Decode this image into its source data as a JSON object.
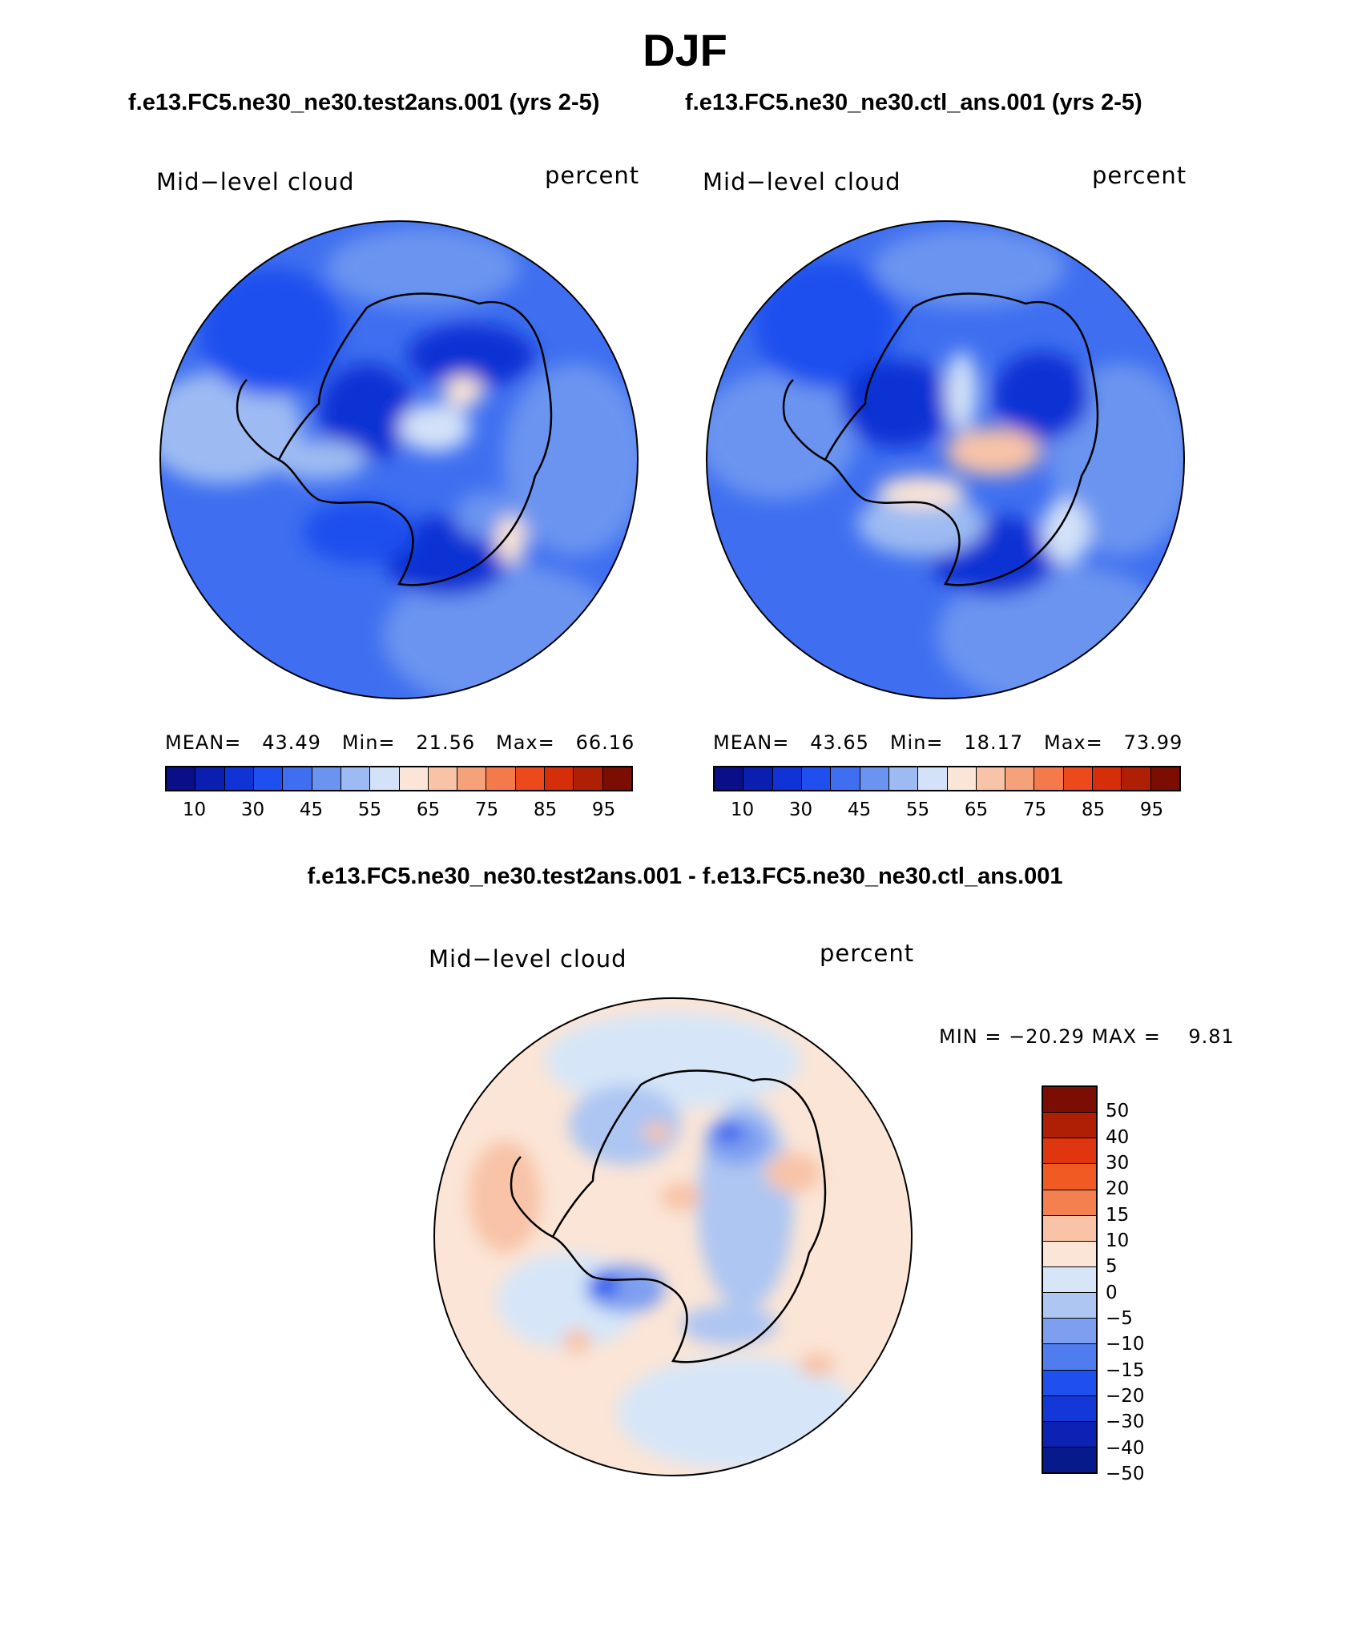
{
  "figure": {
    "title": "DJF",
    "subtitle_left": "f.e13.FC5.ne30_ne30.test2ans.001 (yrs 2-5)",
    "subtitle_right": "f.e13.FC5.ne30_ne30.ctl_ans.001 (yrs 2-5)",
    "diff_title": "f.e13.FC5.ne30_ne30.test2ans.001 - f.e13.FC5.ne30_ne30.ctl_ans.001"
  },
  "panels": [
    {
      "variable": "Mid−level cloud",
      "units": "percent",
      "stats": "MEAN=   43.49   Min=   21.56   Max=   66.16"
    },
    {
      "variable": "Mid−level cloud",
      "units": "percent",
      "stats": "MEAN=   43.65   Min=   18.17   Max=   73.99"
    }
  ],
  "diff_panel": {
    "variable": "Mid−level cloud",
    "units": "percent",
    "stats": "MIN = −20.29 MAX =    9.81"
  },
  "colorbar_abs": {
    "colors": [
      "#0a0f87",
      "#0a1fb0",
      "#0f33d4",
      "#1f4fee",
      "#3f6ff0",
      "#6b94f0",
      "#9dbbf2",
      "#d3e2f8",
      "#fbe5d6",
      "#f8c3a7",
      "#f5a17a",
      "#f47a4b",
      "#ec4a1c",
      "#d62e09",
      "#ae1f06",
      "#7c0d02"
    ],
    "tick_labels": [
      "10",
      "30",
      "45",
      "55",
      "65",
      "75",
      "85",
      "95"
    ]
  },
  "colorbar_diff": {
    "colors": [
      "#7c0d02",
      "#ae1f06",
      "#e0360f",
      "#f25a23",
      "#f47f4f",
      "#f8c3a7",
      "#fbe5d6",
      "#d6e6f8",
      "#adc6f2",
      "#7e9ff0",
      "#4f7df0",
      "#1f4fee",
      "#1438d8",
      "#0c22b5",
      "#071a8c"
    ],
    "tick_labels": [
      "50",
      "40",
      "30",
      "20",
      "15",
      "10",
      "5",
      "0",
      "−5",
      "−10",
      "−15",
      "−20",
      "−30",
      "−40",
      "−50"
    ]
  }
}
